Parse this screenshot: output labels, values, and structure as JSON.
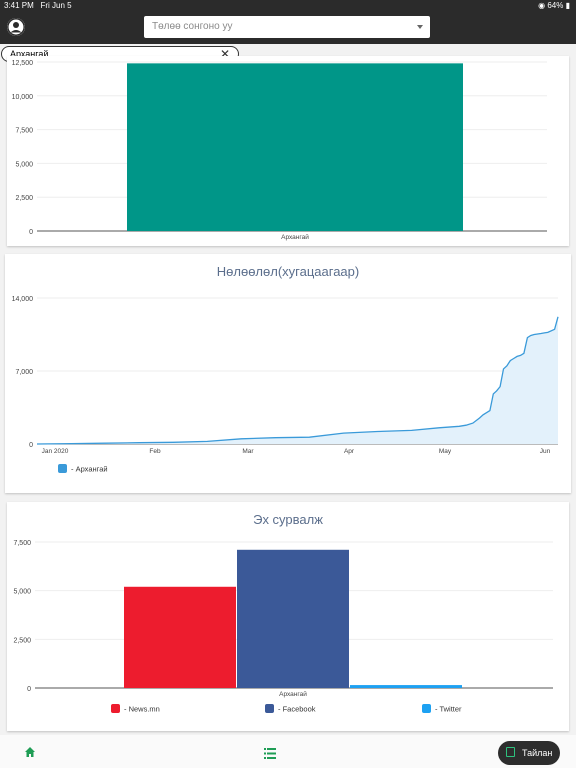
{
  "status_bar": {
    "time": "3:41 PM",
    "date": "Fri Jun 5",
    "battery": "64%"
  },
  "header": {
    "select_placeholder": "Төлөө сонгоно уу"
  },
  "filter_chip": {
    "label": "Архангай"
  },
  "bottom_bar": {
    "report_label": "Тайлан"
  },
  "colors": {
    "teal": "#009688",
    "line": "#3a9ad9",
    "news": "#ed1c2e",
    "facebook": "#3b5998",
    "twitter": "#1da1f2"
  },
  "chart_data": [
    {
      "type": "bar",
      "title": "",
      "categories": [
        "Архангай"
      ],
      "values": [
        12400
      ],
      "ylim": [
        0,
        12500
      ],
      "yticks": [
        "0",
        "2,500",
        "5,000",
        "7,500",
        "10,000",
        "12,500"
      ],
      "color": "#009688"
    },
    {
      "type": "area",
      "title": "Нөлөөлөл(хугацаагаар)",
      "xticks": [
        "Jan 2020",
        "Feb",
        "Mar",
        "Apr",
        "May",
        "Jun"
      ],
      "yticks": [
        "0",
        "7,000",
        "14,000"
      ],
      "ylim": [
        0,
        14000
      ],
      "series": [
        {
          "name": "Архангай",
          "x": [
            0,
            10,
            20,
            30,
            40,
            50,
            60,
            70,
            80,
            90,
            100,
            110,
            118,
            120,
            122,
            124,
            126,
            128,
            130,
            131,
            132,
            133,
            134,
            135,
            136,
            137,
            138,
            139,
            140,
            141,
            142,
            143,
            144,
            145,
            146,
            147,
            148,
            149,
            150,
            152,
            153
          ],
          "values": [
            0,
            40,
            80,
            120,
            160,
            250,
            500,
            600,
            650,
            1050,
            1200,
            1300,
            1550,
            1600,
            1650,
            1700,
            1800,
            2000,
            2500,
            2800,
            3000,
            3200,
            4800,
            5100,
            5500,
            7200,
            7500,
            8000,
            8200,
            8400,
            8500,
            8700,
            10200,
            10400,
            10500,
            10550,
            10600,
            10650,
            10700,
            11000,
            12200
          ]
        }
      ]
    },
    {
      "type": "bar",
      "title": "Эх сурвалж",
      "categories": [
        "Архангай"
      ],
      "ylim": [
        0,
        7500
      ],
      "yticks": [
        "0",
        "2,500",
        "5,000",
        "7,500"
      ],
      "series": [
        {
          "name": "News.mn",
          "values": [
            5200
          ],
          "color": "#ed1c2e"
        },
        {
          "name": "Facebook",
          "values": [
            7100
          ],
          "color": "#3b5998"
        },
        {
          "name": "Twitter",
          "values": [
            150
          ],
          "color": "#1da1f2"
        }
      ]
    }
  ]
}
